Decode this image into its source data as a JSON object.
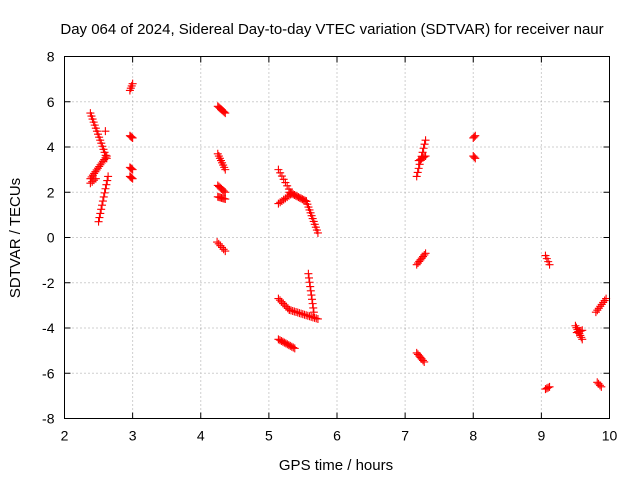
{
  "chart_data": {
    "type": "scatter",
    "title": "Day 064 of 2024, Sidereal Day-to-day VTEC variation (SDTVAR) for receiver naur",
    "xlabel": "GPS time / hours",
    "ylabel": "SDTVAR / TECUs",
    "xlim": [
      2,
      10
    ],
    "ylim": [
      -8,
      8
    ],
    "xticks": [
      "2",
      "3",
      "4",
      "5",
      "6",
      "7",
      "8",
      "9",
      "10"
    ],
    "yticks": [
      "-8",
      "-6",
      "-4",
      "-2",
      "0",
      "2",
      "4",
      "6",
      "8"
    ],
    "grid": true,
    "marker": "+",
    "color": "#ff0000",
    "segments": [
      {
        "x0": 2.38,
        "y0": 5.5,
        "x1": 2.62,
        "y1": 3.5,
        "n": 16
      },
      {
        "x0": 2.38,
        "y0": 2.6,
        "x1": 2.62,
        "y1": 3.6,
        "n": 14
      },
      {
        "x0": 2.5,
        "y0": 0.7,
        "x1": 2.64,
        "y1": 2.7,
        "n": 12
      },
      {
        "x0": 2.38,
        "y0": 2.4,
        "x1": 2.46,
        "y1": 2.6,
        "n": 4
      },
      {
        "x0": 2.6,
        "y0": 4.7,
        "x1": 2.64,
        "y1": 4.7,
        "n": 1
      },
      {
        "x0": 2.96,
        "y0": 6.5,
        "x1": 3.0,
        "y1": 6.8,
        "n": 4
      },
      {
        "x0": 2.96,
        "y0": 4.5,
        "x1": 3.0,
        "y1": 4.4,
        "n": 4
      },
      {
        "x0": 2.96,
        "y0": 3.1,
        "x1": 3.0,
        "y1": 3.0,
        "n": 4
      },
      {
        "x0": 2.96,
        "y0": 2.7,
        "x1": 3.0,
        "y1": 2.6,
        "n": 4
      },
      {
        "x0": 4.25,
        "y0": 5.8,
        "x1": 4.36,
        "y1": 5.5,
        "n": 8
      },
      {
        "x0": 4.25,
        "y0": 3.7,
        "x1": 4.36,
        "y1": 3.0,
        "n": 8
      },
      {
        "x0": 4.25,
        "y0": 2.3,
        "x1": 4.36,
        "y1": 2.0,
        "n": 7
      },
      {
        "x0": 4.25,
        "y0": 1.8,
        "x1": 4.36,
        "y1": 1.7,
        "n": 7
      },
      {
        "x0": 4.24,
        "y0": -0.2,
        "x1": 4.36,
        "y1": -0.6,
        "n": 6
      },
      {
        "x0": 5.14,
        "y0": 3.0,
        "x1": 5.32,
        "y1": 2.0,
        "n": 8
      },
      {
        "x0": 5.14,
        "y0": 1.5,
        "x1": 5.32,
        "y1": 1.9,
        "n": 8
      },
      {
        "x0": 5.3,
        "y0": 2.0,
        "x1": 5.55,
        "y1": 1.6,
        "n": 14
      },
      {
        "x0": 5.55,
        "y0": 1.6,
        "x1": 5.72,
        "y1": 0.2,
        "n": 12
      },
      {
        "x0": 5.14,
        "y0": -2.7,
        "x1": 5.3,
        "y1": -3.2,
        "n": 8
      },
      {
        "x0": 5.3,
        "y0": -3.2,
        "x1": 5.72,
        "y1": -3.6,
        "n": 18
      },
      {
        "x0": 5.58,
        "y0": -1.6,
        "x1": 5.66,
        "y1": -3.3,
        "n": 10
      },
      {
        "x0": 5.14,
        "y0": -4.5,
        "x1": 5.38,
        "y1": -4.9,
        "n": 12
      },
      {
        "x0": 7.17,
        "y0": 2.7,
        "x1": 7.3,
        "y1": 4.3,
        "n": 10
      },
      {
        "x0": 7.2,
        "y0": 3.4,
        "x1": 7.3,
        "y1": 3.6,
        "n": 6
      },
      {
        "x0": 7.17,
        "y0": -1.2,
        "x1": 7.3,
        "y1": -0.7,
        "n": 8
      },
      {
        "x0": 7.17,
        "y0": -5.1,
        "x1": 7.28,
        "y1": -5.5,
        "n": 7
      },
      {
        "x0": 8.0,
        "y0": 4.4,
        "x1": 8.03,
        "y1": 4.5,
        "n": 3
      },
      {
        "x0": 8.0,
        "y0": 3.6,
        "x1": 8.03,
        "y1": 3.5,
        "n": 3
      },
      {
        "x0": 9.06,
        "y0": -0.8,
        "x1": 9.12,
        "y1": -1.2,
        "n": 4
      },
      {
        "x0": 9.06,
        "y0": -6.7,
        "x1": 9.12,
        "y1": -6.6,
        "n": 4
      },
      {
        "x0": 9.5,
        "y0": -3.9,
        "x1": 9.6,
        "y1": -4.5,
        "n": 8
      },
      {
        "x0": 9.52,
        "y0": -4.2,
        "x1": 9.6,
        "y1": -4.1,
        "n": 5
      },
      {
        "x0": 9.8,
        "y0": -3.3,
        "x1": 9.95,
        "y1": -2.7,
        "n": 8
      },
      {
        "x0": 9.82,
        "y0": -6.4,
        "x1": 9.88,
        "y1": -6.6,
        "n": 4
      }
    ]
  }
}
